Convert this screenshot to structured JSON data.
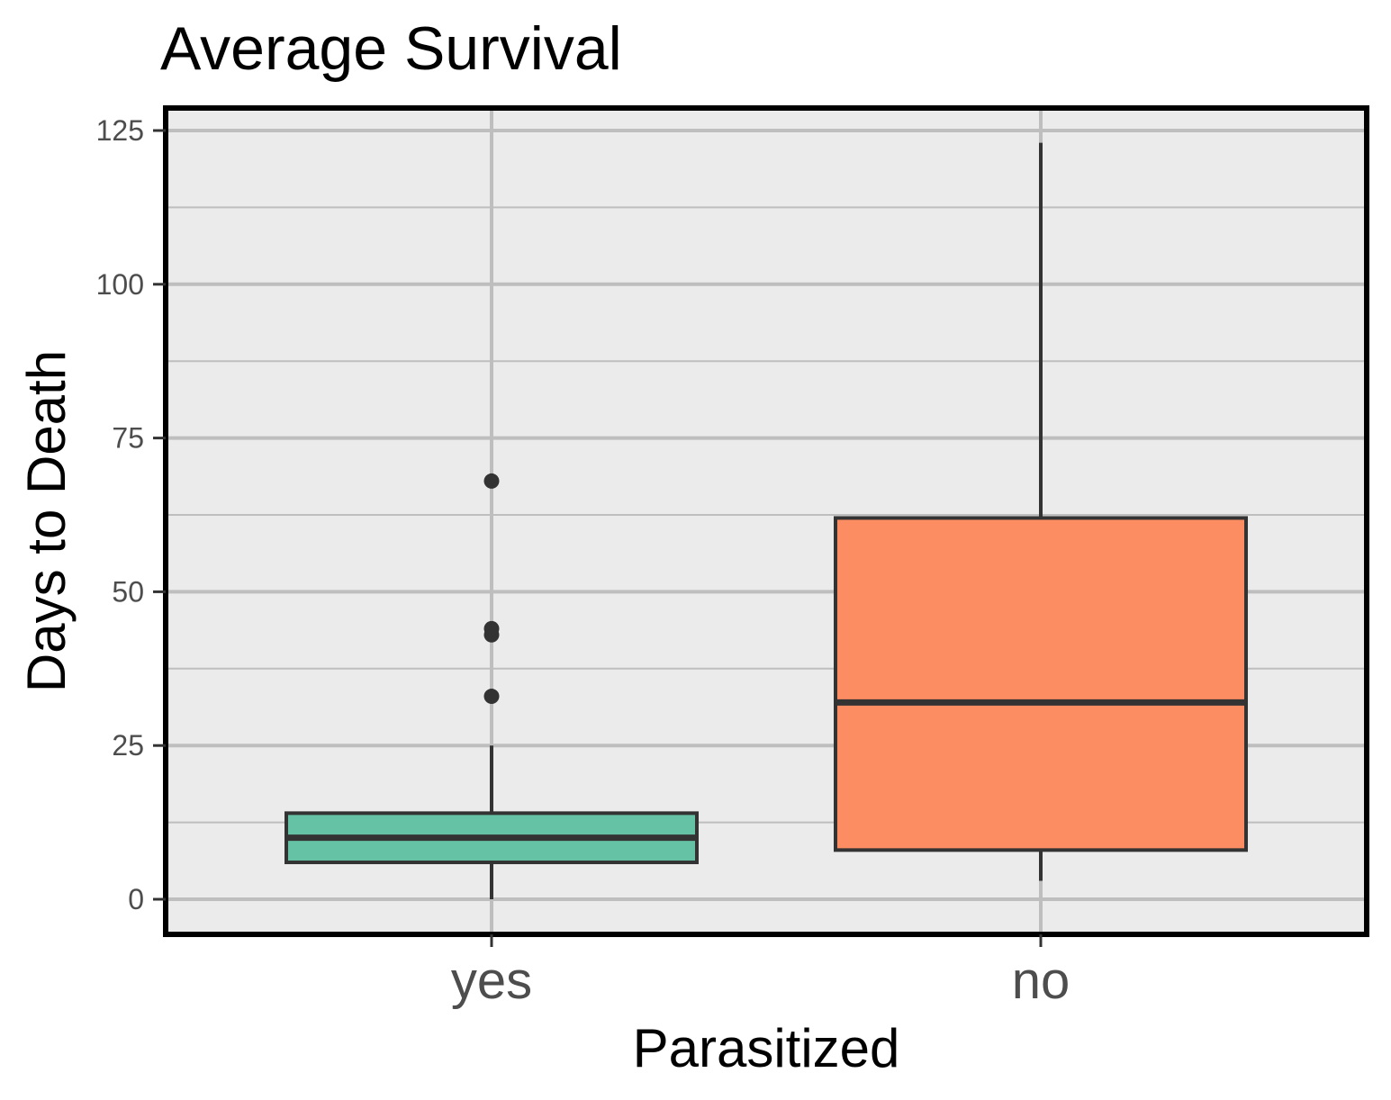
{
  "chart_data": {
    "type": "boxplot",
    "title": "Average Survival",
    "xlabel": "Parasitized",
    "ylabel": "Days to Death",
    "ylim": [
      -5.5,
      128.5
    ],
    "yticks": [
      0,
      25,
      50,
      75,
      100,
      125
    ],
    "minor_yticks": [
      12.5,
      37.5,
      62.5,
      87.5,
      112.5
    ],
    "grid": true,
    "legend": "none",
    "categories": [
      "yes",
      "no"
    ],
    "boxes": [
      {
        "category": "yes",
        "color": "#66c2a5",
        "whisker_low": 0,
        "q1": 6,
        "median": 10,
        "q3": 14,
        "whisker_high": 25,
        "outliers": [
          33,
          43,
          44,
          68
        ]
      },
      {
        "category": "no",
        "color": "#fc8d62",
        "whisker_low": 3,
        "q1": 8,
        "median": 32,
        "q3": 62,
        "whisker_high": 123,
        "outliers": []
      }
    ],
    "colors": {
      "panel_background": "#ebebeb",
      "grid": "#bebebe",
      "outline": "#333333",
      "border": "#000000"
    }
  }
}
